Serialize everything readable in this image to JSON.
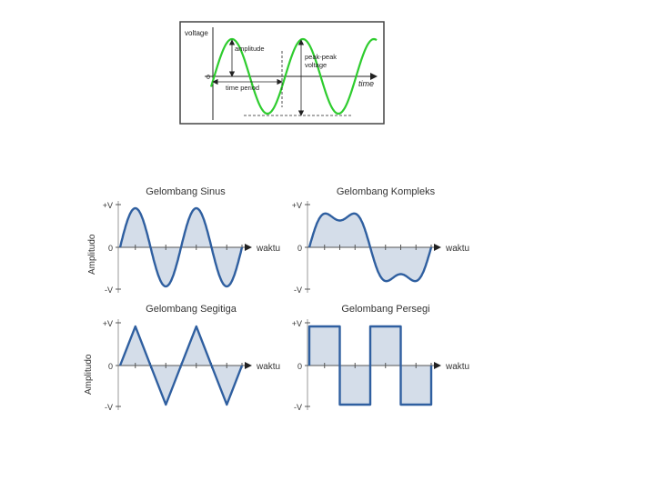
{
  "top_figure": {
    "y_axis_label": "voltage",
    "x_axis_label": "time",
    "zero_label": "0",
    "amplitude_label": "amplitude",
    "peak_peak_line1": "peak-peak",
    "peak_peak_line2": "voltage",
    "time_period_label": "time period",
    "wave_color": "#2ecc2e"
  },
  "grid": {
    "y_axis_label": "Amplitudo",
    "x_axis_label": "waktu",
    "pos_label": "+V",
    "zero_label": "0",
    "neg_label": "-V",
    "wave_color": "#2f5fa0",
    "fill_color": "#d4dde9",
    "panels": [
      {
        "title": "Gelombang Sinus",
        "shape": "sine"
      },
      {
        "title": "Gelombang Kompleks",
        "shape": "complex"
      },
      {
        "title": "Gelombang Segitiga",
        "shape": "triangle"
      },
      {
        "title": "Gelombang Persegi",
        "shape": "square"
      }
    ]
  }
}
